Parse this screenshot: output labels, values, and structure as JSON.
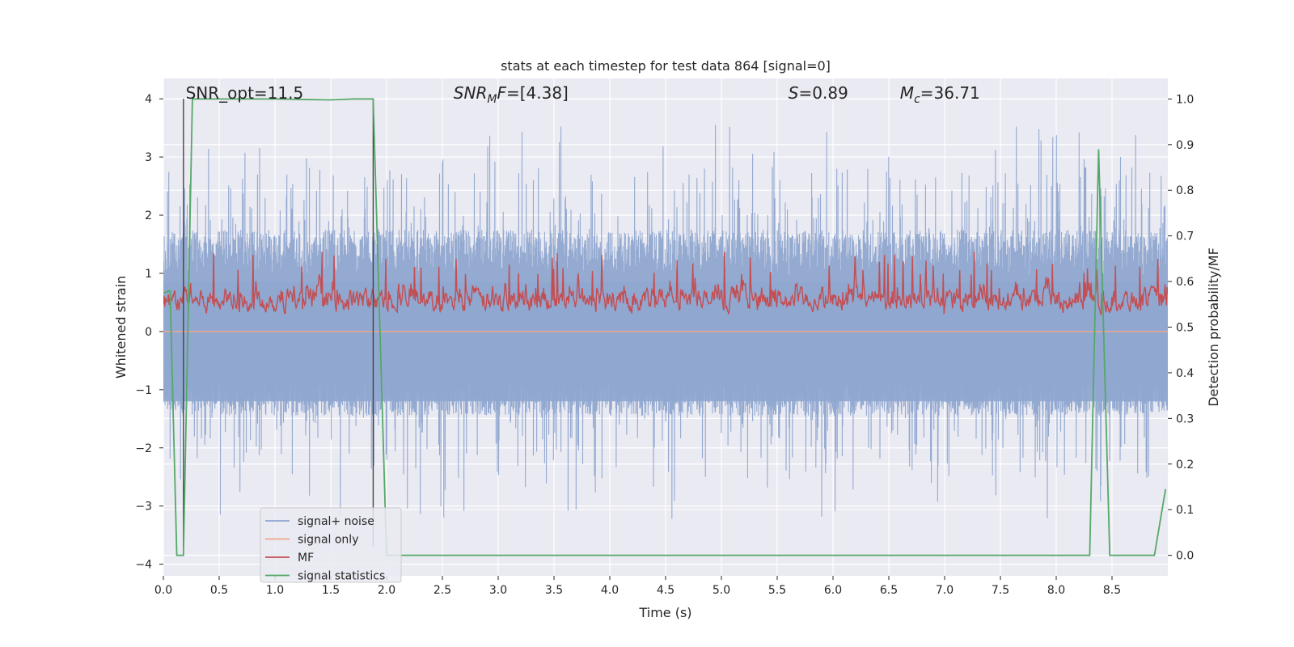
{
  "chart_data": {
    "type": "line",
    "title": "stats at each timestep for test data 864 [signal=0]",
    "xlabel": "Time (s)",
    "ylabel": "Whitened strain",
    "ylabel_right": "Detection probability/MF",
    "xlim": [
      0.0,
      9.0
    ],
    "ylim": [
      -4.2,
      4.35
    ],
    "ylim_right": [
      -0.045,
      1.045
    ],
    "x_ticks": [
      "0.0",
      "0.5",
      "1.0",
      "1.5",
      "2.0",
      "2.5",
      "3.0",
      "3.5",
      "4.0",
      "4.5",
      "5.0",
      "5.5",
      "6.0",
      "6.5",
      "7.0",
      "7.5",
      "8.0",
      "8.5"
    ],
    "y_ticks": [
      "4",
      "3",
      "2",
      "1",
      "0",
      "−1",
      "−2",
      "−3",
      "−4"
    ],
    "y_right_ticks": [
      "1.0",
      "0.9",
      "0.8",
      "0.7",
      "0.6",
      "0.5",
      "0.4",
      "0.3",
      "0.2",
      "0.1",
      "0.0"
    ],
    "grid": true,
    "legend_position": "lower-left",
    "annotations": [
      {
        "text": "SNR_opt=11.5",
        "at_x": 0.2,
        "at_y": 4.1
      },
      {
        "text": "SNR_MF=[4.38]",
        "at_x": 2.6,
        "at_y": 4.1,
        "math": true,
        "base": "SNR",
        "sub": "M",
        "rest": "F=[4.38]"
      },
      {
        "text": "S=0.89",
        "at_x": 5.6,
        "at_y": 4.1,
        "math": true,
        "base": "S",
        "sub": "",
        "rest": "=0.89"
      },
      {
        "text": "M_c=36.71",
        "at_x": 6.6,
        "at_y": 4.1,
        "math": true,
        "base": "M",
        "sub": "c",
        "rest": "=36.71"
      }
    ],
    "legend": [
      {
        "name": "signal+ noise",
        "color": "#8fa6cf"
      },
      {
        "name": "signal only",
        "color": "#f0a58a"
      },
      {
        "name": "MF",
        "color": "#c44e52"
      },
      {
        "name": "signal statistics",
        "color": "#55a868"
      }
    ],
    "series": [
      {
        "name": "signal+ noise",
        "axis": "left",
        "kind": "noise",
        "band_low": -1.45,
        "band_high": 1.75,
        "peak_low": -3.25,
        "peak_high": 3.55,
        "color": "#8fa6cf"
      },
      {
        "name": "signal only",
        "axis": "left",
        "kind": "flat",
        "value": 0.0,
        "color": "#f0a58a"
      },
      {
        "name": "MF",
        "axis": "right",
        "kind": "noise",
        "range": [
          0.5,
          0.64
        ],
        "color": "#c44e52"
      },
      {
        "name": "signal statistics",
        "axis": "right",
        "color": "#55a868",
        "x": [
          0.0,
          0.06,
          0.12,
          0.18,
          0.26,
          0.6,
          1.0,
          1.5,
          1.7,
          1.88,
          2.0,
          8.3,
          8.38,
          8.48,
          8.88,
          8.98
        ],
        "y": [
          0.575,
          0.58,
          0.0,
          0.0,
          1.0,
          1.0,
          1.0,
          0.998,
          1.0,
          1.0,
          0.0,
          0.0,
          0.89,
          0.0,
          0.0,
          0.145
        ]
      },
      {
        "name": "",
        "axis": "left",
        "kind": "vlines",
        "x": [
          0.18,
          1.88
        ],
        "y_top": 4.0,
        "y_bottom": -3.7,
        "color": "#444444"
      }
    ]
  },
  "colors": {
    "plot_bg": "#eaeaf2",
    "grid": "#ffffff",
    "text": "#262626"
  }
}
